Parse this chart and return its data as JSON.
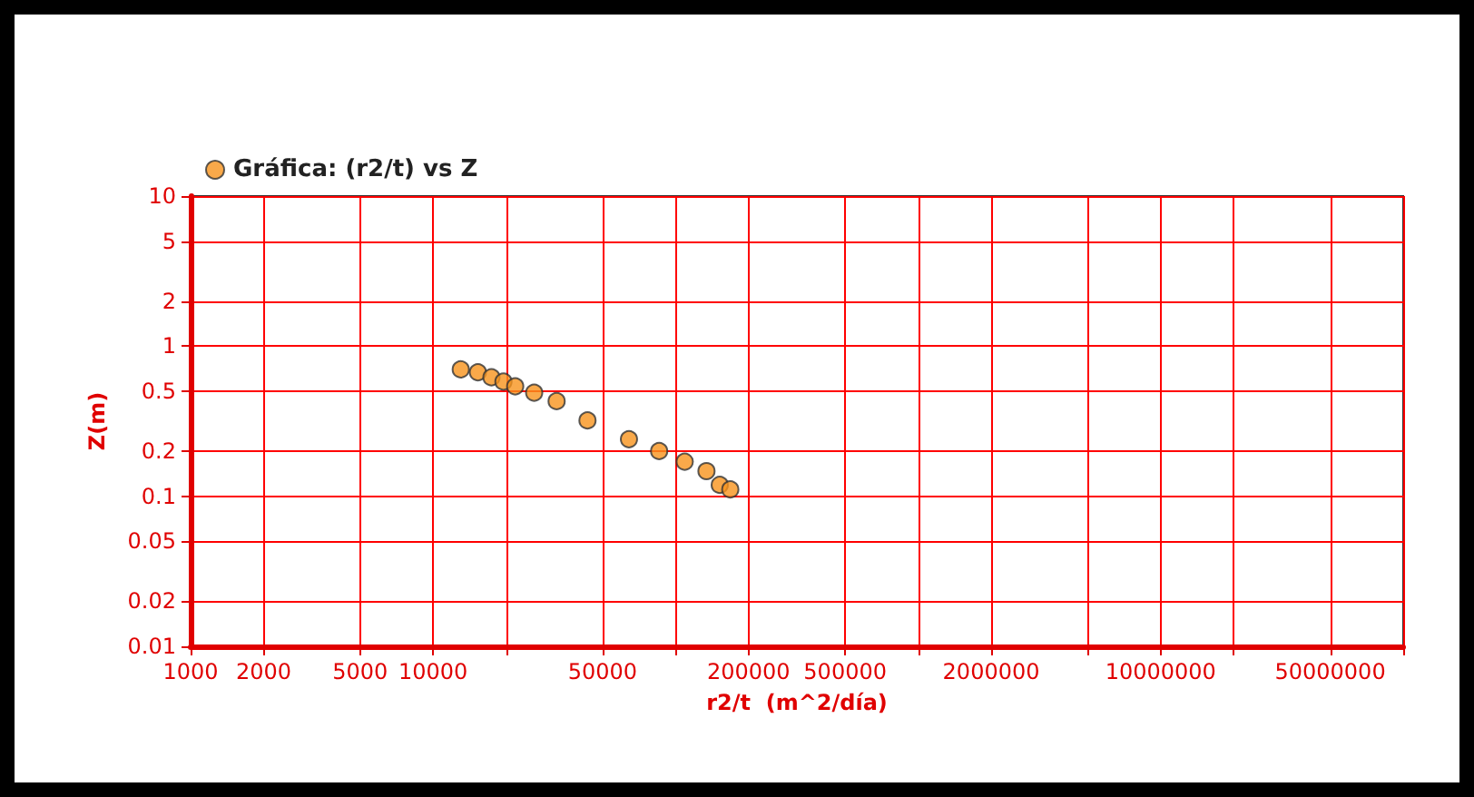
{
  "chart_data": {
    "type": "scatter",
    "xlabel": "r2/t  (m^2/día)",
    "ylabel": "Z(m)",
    "log": "xy",
    "grid": true,
    "legend": "top left",
    "marker": "circle",
    "xlim": [
      1000,
      100000000
    ],
    "xticks": [
      1000,
      2000,
      5000,
      10000,
      {
        "value": 20000,
        "label": null
      },
      50000,
      {
        "value": 100000,
        "label": null
      },
      200000,
      500000,
      {
        "value": 1000000,
        "label": null
      },
      2000000,
      {
        "value": 5000000,
        "label": null
      },
      10000000,
      {
        "value": 20000000,
        "label": null
      },
      50000000,
      {
        "value": 100000000,
        "label": null
      }
    ],
    "ylim": [
      0.01,
      10
    ],
    "yticks": [
      0.01,
      0.02,
      0.05,
      0.1,
      0.2,
      0.5,
      1,
      2,
      5,
      10
    ],
    "series": [
      {
        "name": "Gráfica: (r2/t) vs Z",
        "color": "#f7941d",
        "x": [
          13000,
          15300,
          17400,
          19500,
          21800,
          26100,
          32300,
          43300,
          64200,
          85500,
          109000,
          134000,
          152000,
          168000
        ],
        "values": [
          0.7,
          0.67,
          0.62,
          0.58,
          0.54,
          0.49,
          0.43,
          0.32,
          0.24,
          0.2,
          0.17,
          0.147,
          0.119,
          0.111
        ]
      }
    ]
  }
}
